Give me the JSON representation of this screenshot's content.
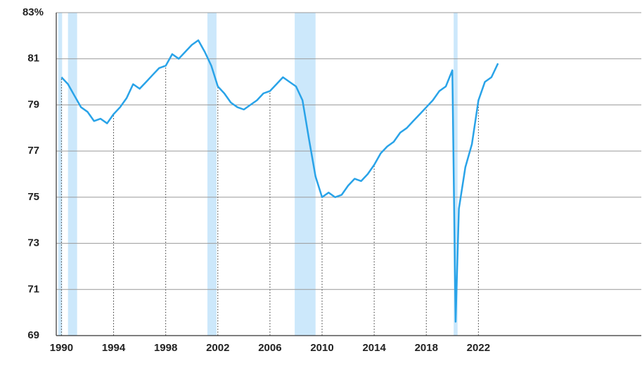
{
  "chart_data": {
    "type": "line",
    "x": [
      1990.0,
      1990.5,
      1991.0,
      1991.5,
      1992.0,
      1992.5,
      1993.0,
      1993.5,
      1994.0,
      1994.5,
      1995.0,
      1995.5,
      1996.0,
      1996.5,
      1997.0,
      1997.5,
      1998.0,
      1998.5,
      1999.0,
      1999.5,
      2000.0,
      2000.5,
      2001.0,
      2001.5,
      2002.0,
      2002.5,
      2003.0,
      2003.5,
      2004.0,
      2004.5,
      2005.0,
      2005.5,
      2006.0,
      2006.5,
      2007.0,
      2007.5,
      2008.0,
      2008.5,
      2009.0,
      2009.5,
      2010.0,
      2010.5,
      2011.0,
      2011.5,
      2012.0,
      2012.5,
      2013.0,
      2013.5,
      2014.0,
      2014.5,
      2015.0,
      2015.5,
      2016.0,
      2016.5,
      2017.0,
      2017.5,
      2018.0,
      2018.5,
      2019.0,
      2019.5,
      2020.0,
      2020.25,
      2020.5,
      2021.0,
      2021.5,
      2022.0,
      2022.5,
      2023.0,
      2023.5
    ],
    "series": [
      {
        "color": "#29a3e8",
        "values": [
          80.2,
          79.9,
          79.4,
          78.9,
          78.7,
          78.3,
          78.4,
          78.2,
          78.6,
          78.9,
          79.3,
          79.9,
          79.7,
          80.0,
          80.3,
          80.6,
          80.7,
          81.2,
          81.0,
          81.3,
          81.6,
          81.8,
          81.3,
          80.7,
          79.8,
          79.5,
          79.1,
          78.9,
          78.8,
          79.0,
          79.2,
          79.5,
          79.6,
          79.9,
          80.2,
          80.0,
          79.8,
          79.2,
          77.5,
          75.9,
          75.0,
          75.2,
          75.0,
          75.1,
          75.5,
          75.8,
          75.7,
          76.0,
          76.4,
          76.9,
          77.2,
          77.4,
          77.8,
          78.0,
          78.3,
          78.6,
          78.9,
          79.2,
          79.6,
          79.8,
          80.5,
          69.6,
          74.5,
          76.3,
          77.3,
          79.2,
          80.0,
          80.2,
          80.8
        ]
      }
    ],
    "shaded_ranges": [
      [
        1989.75,
        1990.05
      ],
      [
        1990.5,
        1991.2
      ],
      [
        2001.2,
        2001.9
      ],
      [
        2007.9,
        2009.5
      ],
      [
        2020.1,
        2020.4
      ]
    ],
    "shade_color": "#cce8fb",
    "xlim": [
      1989.6,
      2034.5
    ],
    "xticks": [
      1990,
      1994,
      1998,
      2002,
      2006,
      2010,
      2014,
      2018,
      2022
    ],
    "ylim": [
      69,
      83
    ],
    "yticks": [
      69,
      71,
      73,
      75,
      77,
      79,
      81,
      {
        "value": 83,
        "label": "83%"
      }
    ],
    "grid": true
  }
}
